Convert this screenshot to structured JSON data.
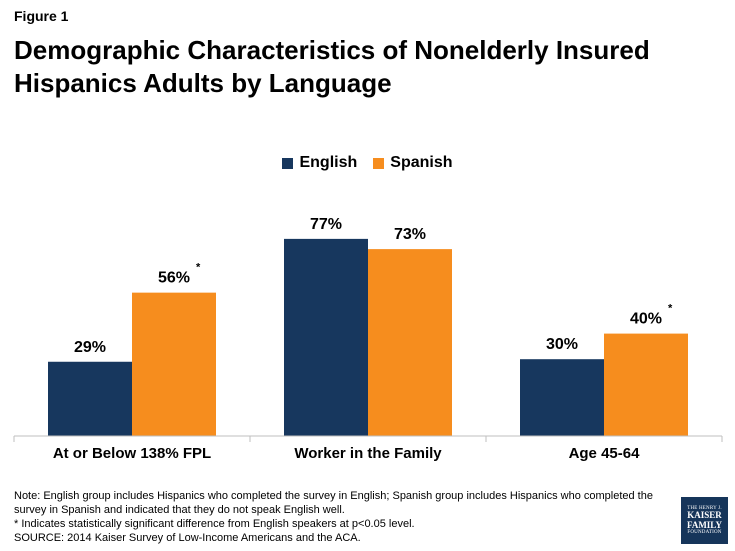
{
  "figure_label": "Figure 1",
  "title_line1": "Demographic Characteristics of Nonelderly Insured",
  "title_line2": "Hispanics Adults by Language",
  "colors": {
    "english": "#17375e",
    "spanish": "#f68d1e",
    "axis": "#bfbfbf"
  },
  "chart_data": {
    "type": "bar",
    "title": "Demographic Characteristics of Nonelderly Insured Hispanics Adults by Language",
    "categories": [
      "At or Below 138% FPL",
      "Worker in the Family",
      "Age 45-64"
    ],
    "series": [
      {
        "name": "English",
        "values": [
          29,
          77,
          30
        ],
        "labels": [
          "29%",
          "77%",
          "30%"
        ],
        "significant": [
          false,
          false,
          false
        ]
      },
      {
        "name": "Spanish",
        "values": [
          56,
          73,
          40
        ],
        "labels": [
          "56%",
          "73%",
          "40%"
        ],
        "significant": [
          true,
          false,
          true
        ]
      }
    ],
    "significance_marker": "*",
    "ylim": [
      0,
      100
    ],
    "grid": false,
    "legend_position": "top-center"
  },
  "notes": {
    "line1": "Note: English group includes Hispanics who completed the survey in English; Spanish group includes Hispanics who completed the survey in Spanish and indicated that they do not speak English well.",
    "line2": "* Indicates statistically significant difference from English speakers at p<0.05 level.",
    "line3": "SOURCE: 2014 Kaiser Survey of Low-Income Americans and the ACA."
  },
  "logo": {
    "line1": "THE HENRY J.",
    "line2": "KAISER",
    "line3": "FAMILY",
    "line4": "FOUNDATION"
  }
}
